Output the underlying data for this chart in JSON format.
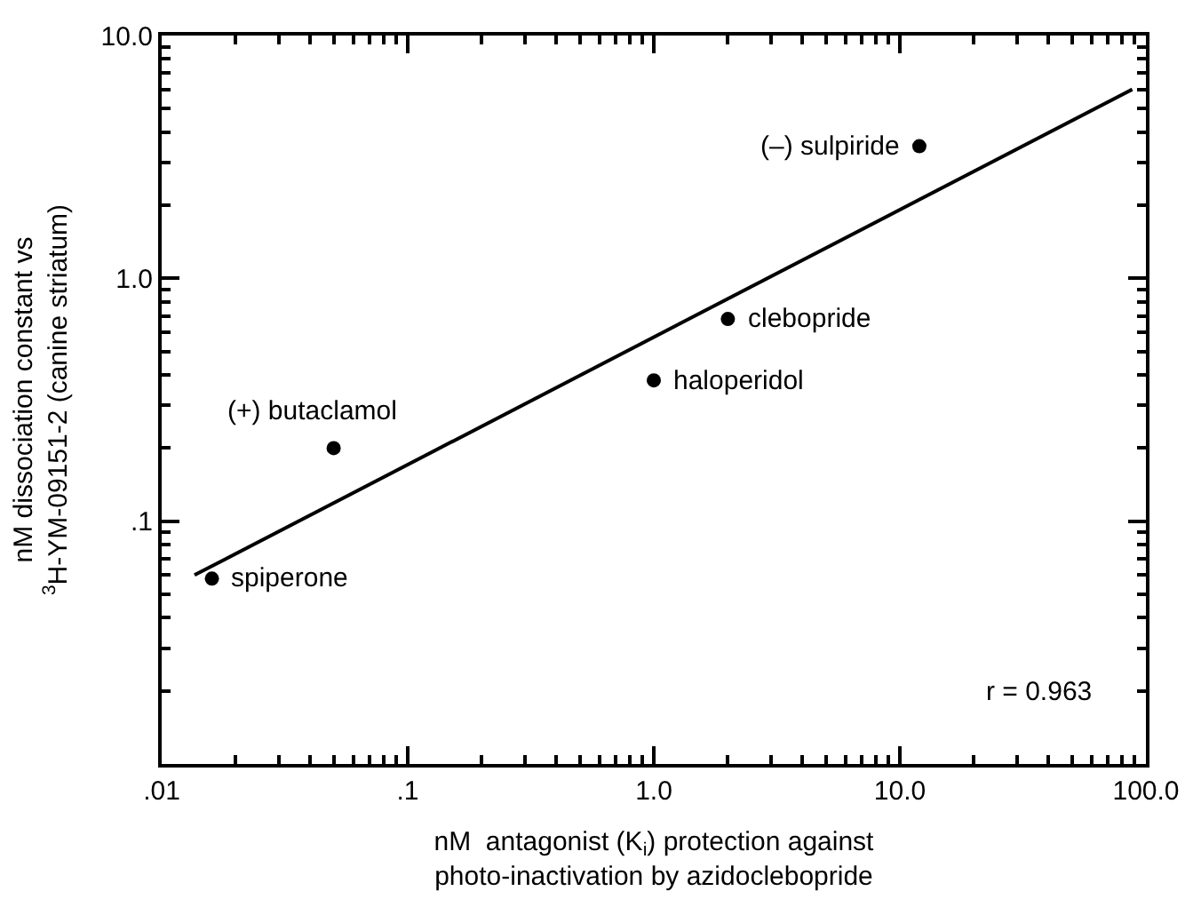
{
  "chart_data": {
    "type": "scatter",
    "xlabel": "nM  antagonist (K$_{i}$) protection against\nphoto-inactivation by azidoclebopride",
    "ylabel": "nM dissociation constant vs\n$^{3}$H-YM-09151-2 (canine striatum)",
    "log": "xy",
    "xlim": [
      0.01,
      100
    ],
    "ylim": [
      0.01,
      10
    ],
    "xticks": [
      {
        "value": 0.01,
        "label": ".01"
      },
      {
        "value": 0.1,
        "label": ".1"
      },
      {
        "value": 1,
        "label": "1.0"
      },
      {
        "value": 10,
        "label": "10.0"
      },
      {
        "value": 100,
        "label": "100.0"
      }
    ],
    "yticks": [
      {
        "value": 0.01,
        "label": null
      },
      {
        "value": 0.1,
        "label": ".1"
      },
      {
        "value": 1,
        "label": "1.0"
      },
      {
        "value": 10,
        "label": "10.0"
      }
    ],
    "series": [
      {
        "marker": "circle",
        "color": "#000000",
        "x": [
          0.016,
          0.05,
          1.0,
          2.0,
          12
        ],
        "values": [
          0.058,
          0.2,
          0.38,
          0.68,
          3.5
        ]
      },
      {
        "type": "line",
        "marker": "none",
        "color": "#000000",
        "x": [
          0.0136,
          88
        ],
        "values": [
          0.06,
          6.0
        ]
      }
    ],
    "annotations": [
      {
        "text": "spiperone",
        "x": 0.016,
        "y": 0.058
      },
      {
        "text": "(+) butaclamol",
        "x": 0.05,
        "y": 0.2
      },
      {
        "text": "haloperidol",
        "x": 1.0,
        "y": 0.38
      },
      {
        "text": "clebopride",
        "x": 2.0,
        "y": 0.68
      },
      {
        "text": "(–) sulpiride",
        "x": 12,
        "y": 3.5
      },
      "r = 0.963"
    ]
  }
}
